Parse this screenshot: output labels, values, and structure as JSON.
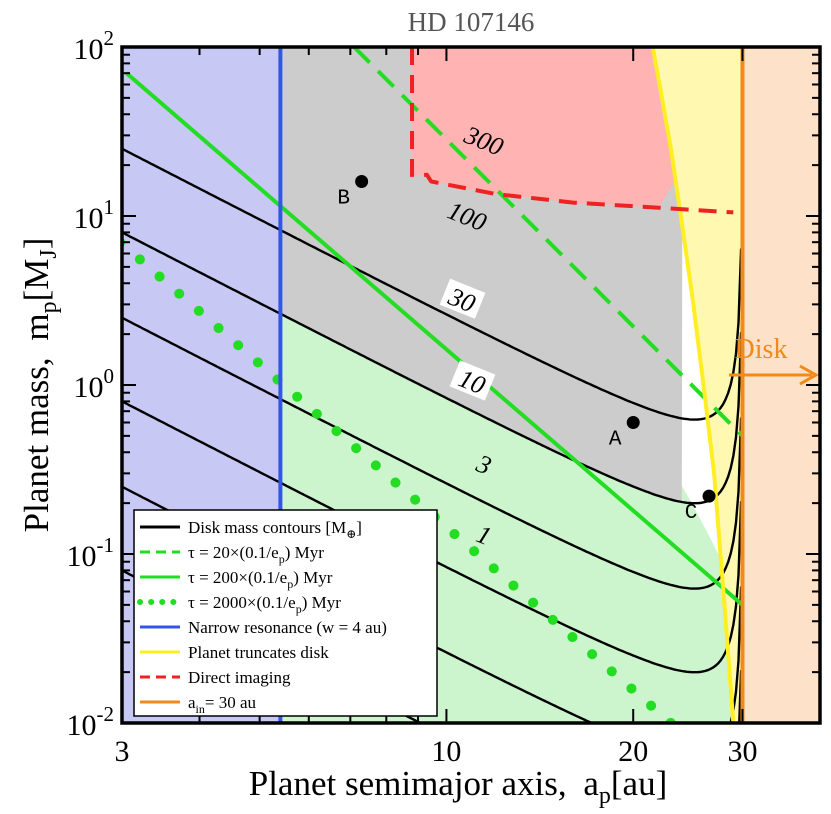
{
  "chart_data": {
    "type": "line",
    "title": "HD 107146",
    "xlabel": "Planet semimajor axis,",
    "xlabel_sym": "a",
    "xlabel_sub": "p",
    "xlabel_unit": "[au]",
    "ylabel": "Planet mass,",
    "ylabel_sym": "m",
    "ylabel_sub": "p",
    "ylabel_unit": "[M",
    "ylabel_unit_sub": "J",
    "ylabel_unit_end": "]",
    "xscale": "log",
    "yscale": "log",
    "xlim": [
      3,
      40
    ],
    "ylim": [
      0.01,
      100
    ],
    "x_ticks": [
      {
        "value": 3,
        "label": "3"
      },
      {
        "value": 10,
        "label": "10"
      },
      {
        "value": 20,
        "label": "20"
      },
      {
        "value": 30,
        "label": "30"
      }
    ],
    "y_ticks": [
      {
        "value": 0.01,
        "base": "10",
        "exp": "-2"
      },
      {
        "value": 0.1,
        "base": "10",
        "exp": "-1"
      },
      {
        "value": 1,
        "base": "10",
        "exp": "0"
      },
      {
        "value": 10,
        "base": "10",
        "exp": "1"
      },
      {
        "value": 100,
        "base": "10",
        "exp": "2"
      }
    ],
    "regions": [
      {
        "name": "narrow-resonance-region",
        "color": "#c8c8f5",
        "a_max": 5.4
      },
      {
        "name": "disk-region",
        "color": "#fde1c8",
        "a_min": 30
      },
      {
        "name": "long-timescale-region",
        "color": "#cdf5cd"
      },
      {
        "name": "high-disk-mass-region",
        "color": "#cccccc"
      },
      {
        "name": "truncation-region",
        "color": "#fff8b0"
      },
      {
        "name": "direct-imaging-region",
        "color": "#ffb3b3"
      }
    ],
    "contours": [
      {
        "label": "1",
        "mass_earth": 1,
        "m_at_3au": 0.08,
        "label_a": 11.5,
        "label_m": 0.13
      },
      {
        "label": "3",
        "mass_earth": 3,
        "m_at_3au": 0.25,
        "label_a": 11.5,
        "label_m": 0.34
      },
      {
        "label": "10",
        "mass_earth": 10,
        "m_at_3au": 0.8,
        "label_a": 11.0,
        "label_m": 1.05
      },
      {
        "label": "30",
        "mass_earth": 30,
        "m_at_3au": 2.5,
        "label_a": 10.6,
        "label_m": 3.2
      },
      {
        "label": "100",
        "mass_earth": 100,
        "m_at_3au": 8.0,
        "label_a": 10.8,
        "label_m": 10.0
      },
      {
        "label": "300",
        "mass_earth": 300,
        "m_at_3au": 25.0,
        "label_a": 11.5,
        "label_m": 28.0
      }
    ],
    "timescale_lines": [
      {
        "name": "tau-20-line",
        "x": [
          7.1,
          30
        ],
        "y": [
          100,
          0.5
        ],
        "style": "dashed",
        "color": "#22dd22"
      },
      {
        "name": "tau-200-line",
        "x": [
          3.05,
          30
        ],
        "y": [
          70,
          0.05
        ],
        "style": "solid",
        "color": "#22dd22"
      },
      {
        "name": "tau-2000-line",
        "x": [
          2.98,
          23
        ],
        "y": [
          7,
          0.01
        ],
        "style": "dotted",
        "color": "#22dd22"
      }
    ],
    "narrow_resonance_a": 5.4,
    "disk_inner_edge_a": 30,
    "truncation_curve": {
      "x": [
        21.5,
        23,
        25,
        27,
        29
      ],
      "y": [
        100,
        25,
        3,
        0.3,
        0.01
      ]
    },
    "direct_imaging_curve": {
      "x": [
        8.8,
        8.8,
        9.3,
        9.45,
        12,
        16,
        22,
        29
      ],
      "y": [
        100,
        17.5,
        17.5,
        16,
        13.5,
        12,
        11.2,
        10.5
      ]
    },
    "points": [
      {
        "label": "B",
        "a": 7.3,
        "m": 16
      },
      {
        "label": "A",
        "a": 20,
        "m": 0.6
      },
      {
        "label": "C",
        "a": 26.5,
        "m": 0.22
      }
    ],
    "disk_arrow_label": "Disk",
    "legend": {
      "position": "bottom-left",
      "entries": [
        {
          "label": "Disk mass contours [M",
          "sub": "⊕",
          "end": "]",
          "style": "solid",
          "color": "#000000"
        },
        {
          "label": "τ = 20×(0.1/e",
          "sub": "p",
          "end": ") Myr",
          "style": "dashed",
          "color": "#22dd22"
        },
        {
          "label": "τ = 200×(0.1/e",
          "sub": "p",
          "end": ") Myr",
          "style": "solid",
          "color": "#22dd22"
        },
        {
          "label": "τ = 2000×(0.1/e",
          "sub": "p",
          "end": ") Myr",
          "style": "dotted",
          "color": "#22dd22"
        },
        {
          "label": "Narrow resonance (w = 4 au)",
          "sub": "",
          "end": "",
          "style": "solid",
          "color": "#3355ee"
        },
        {
          "label": "Planet truncates disk",
          "sub": "",
          "end": "",
          "style": "solid",
          "color": "#ffee22"
        },
        {
          "label": "Direct imaging",
          "sub": "",
          "end": "",
          "style": "dashed",
          "color": "#ee2222"
        },
        {
          "label": "a",
          "sub": "in",
          "end": "= 30 au",
          "style": "solid",
          "color": "#f08a1a"
        }
      ]
    }
  }
}
